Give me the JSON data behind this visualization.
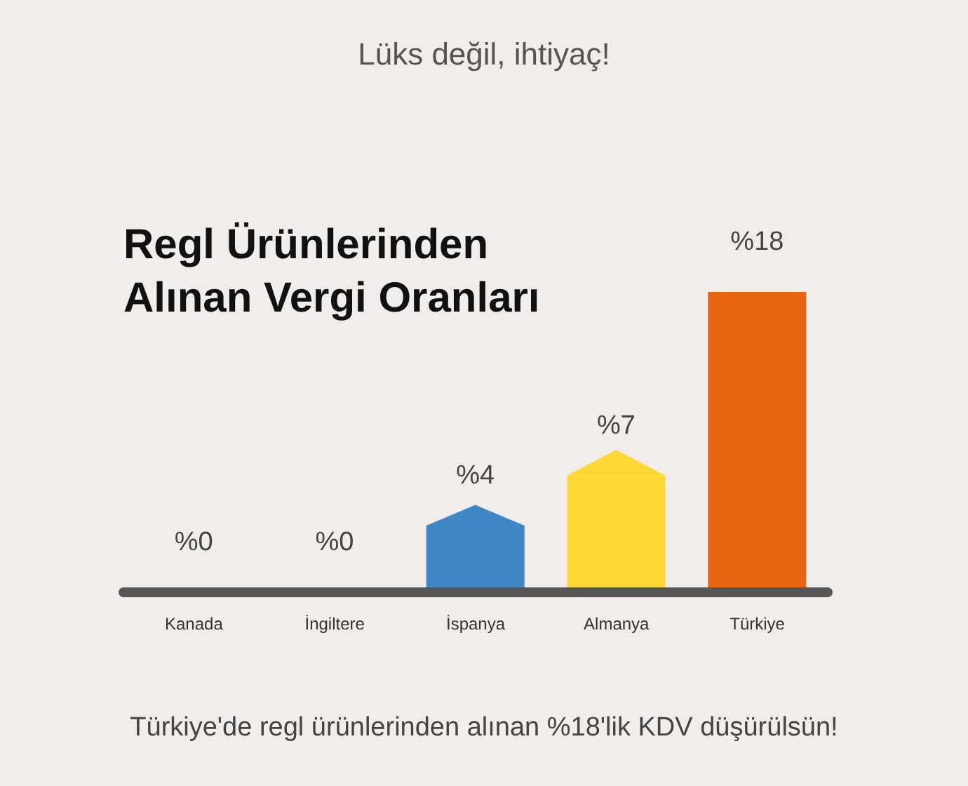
{
  "chart_data": {
    "type": "bar",
    "title": "Regl Ürünlerinden\nAlınan Vergi Oranları",
    "subtitle": "Lüks değil, ihtiyaç!",
    "annotations": [
      "Türkiye'de regl ürünlerinden alınan %18'lik KDV düşürülsün!"
    ],
    "categories": [
      "Kanada",
      "İngiltere",
      "İspanya",
      "Almanya",
      "Türkiye"
    ],
    "values": [
      0,
      0,
      4,
      7,
      18
    ],
    "value_labels": [
      "%0",
      "%0",
      "%4",
      "%7",
      "%18"
    ],
    "colors": [
      "#3f87c4",
      "#3f87c4",
      "#3f87c4",
      "#fdd835",
      "#e8650f"
    ]
  }
}
